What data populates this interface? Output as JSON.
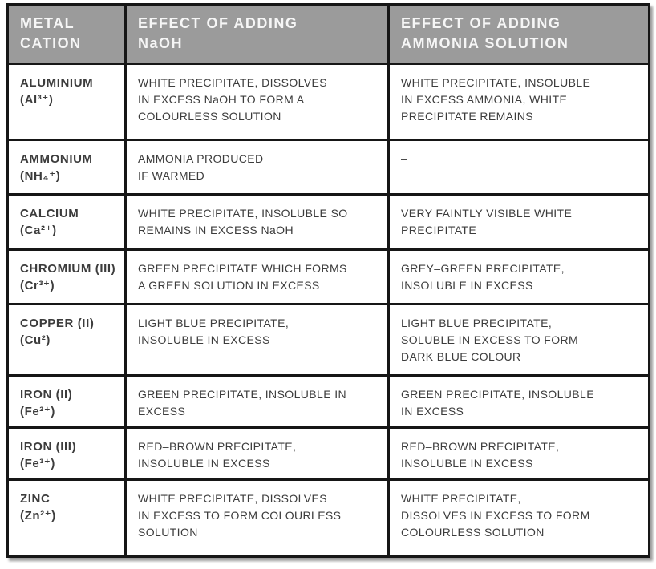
{
  "colors": {
    "header-bg": "#9b9b9b",
    "header-text": "#f6f6f6",
    "border": "#161616",
    "body-text": "#3c3c3c",
    "cell-bg": "#ffffff"
  },
  "table": {
    "headers": [
      "METAL\nCATION",
      "EFFECT OF ADDING\nNaOH",
      "EFFECT OF ADDING\nAMMONIA SOLUTION"
    ],
    "rows": [
      {
        "cation_name": "ALUMINIUM",
        "cation_formula": "(Al³⁺)",
        "naoh": "WHITE PRECIPITATE, DISSOLVES\nIN EXCESS NaOH TO FORM A\nCOLOURLESS SOLUTION",
        "ammonia": "WHITE PRECIPITATE, INSOLUBLE\nIN EXCESS AMMONIA, WHITE\nPRECIPITATE REMAINS"
      },
      {
        "cation_name": "AMMONIUM",
        "cation_formula": "(NH₄⁺)",
        "naoh": "AMMONIA PRODUCED\nIF WARMED",
        "ammonia": "–"
      },
      {
        "cation_name": "CALCIUM",
        "cation_formula": "(Ca²⁺)",
        "naoh": "WHITE PRECIPITATE, INSOLUBLE SO\nREMAINS IN EXCESS NaOH",
        "ammonia": "VERY FAINTLY VISIBLE WHITE\nPRECIPITATE"
      },
      {
        "cation_name": "CHROMIUM (III)",
        "cation_formula": "(Cr³⁺)",
        "naoh": "GREEN PRECIPITATE WHICH FORMS\nA GREEN SOLUTION IN EXCESS",
        "ammonia": "GREY–GREEN PRECIPITATE,\nINSOLUBLE IN EXCESS"
      },
      {
        "cation_name": "COPPER (II)",
        "cation_formula": "(Cu²)",
        "naoh": "LIGHT BLUE PRECIPITATE,\nINSOLUBLE IN EXCESS",
        "ammonia": "LIGHT BLUE PRECIPITATE,\nSOLUBLE IN EXCESS TO FORM\nDARK BLUE COLOUR"
      },
      {
        "cation_name": "IRON (II)",
        "cation_formula": "(Fe²⁺)",
        "naoh": "GREEN PRECIPITATE, INSOLUBLE IN\nEXCESS",
        "ammonia": "GREEN PRECIPITATE, INSOLUBLE\nIN EXCESS"
      },
      {
        "cation_name": "IRON (III)",
        "cation_formula": "(Fe³⁺)",
        "naoh": "RED–BROWN PRECIPITATE,\nINSOLUBLE IN EXCESS",
        "ammonia": "RED–BROWN PRECIPITATE,\nINSOLUBLE IN EXCESS"
      },
      {
        "cation_name": "ZINC",
        "cation_formula": "(Zn²⁺)",
        "naoh": "WHITE PRECIPITATE, DISSOLVES\nIN EXCESS TO FORM COLOURLESS\nSOLUTION",
        "ammonia": "WHITE PRECIPITATE,\nDISSOLVES IN EXCESS TO FORM\nCOLOURLESS SOLUTION"
      }
    ]
  }
}
